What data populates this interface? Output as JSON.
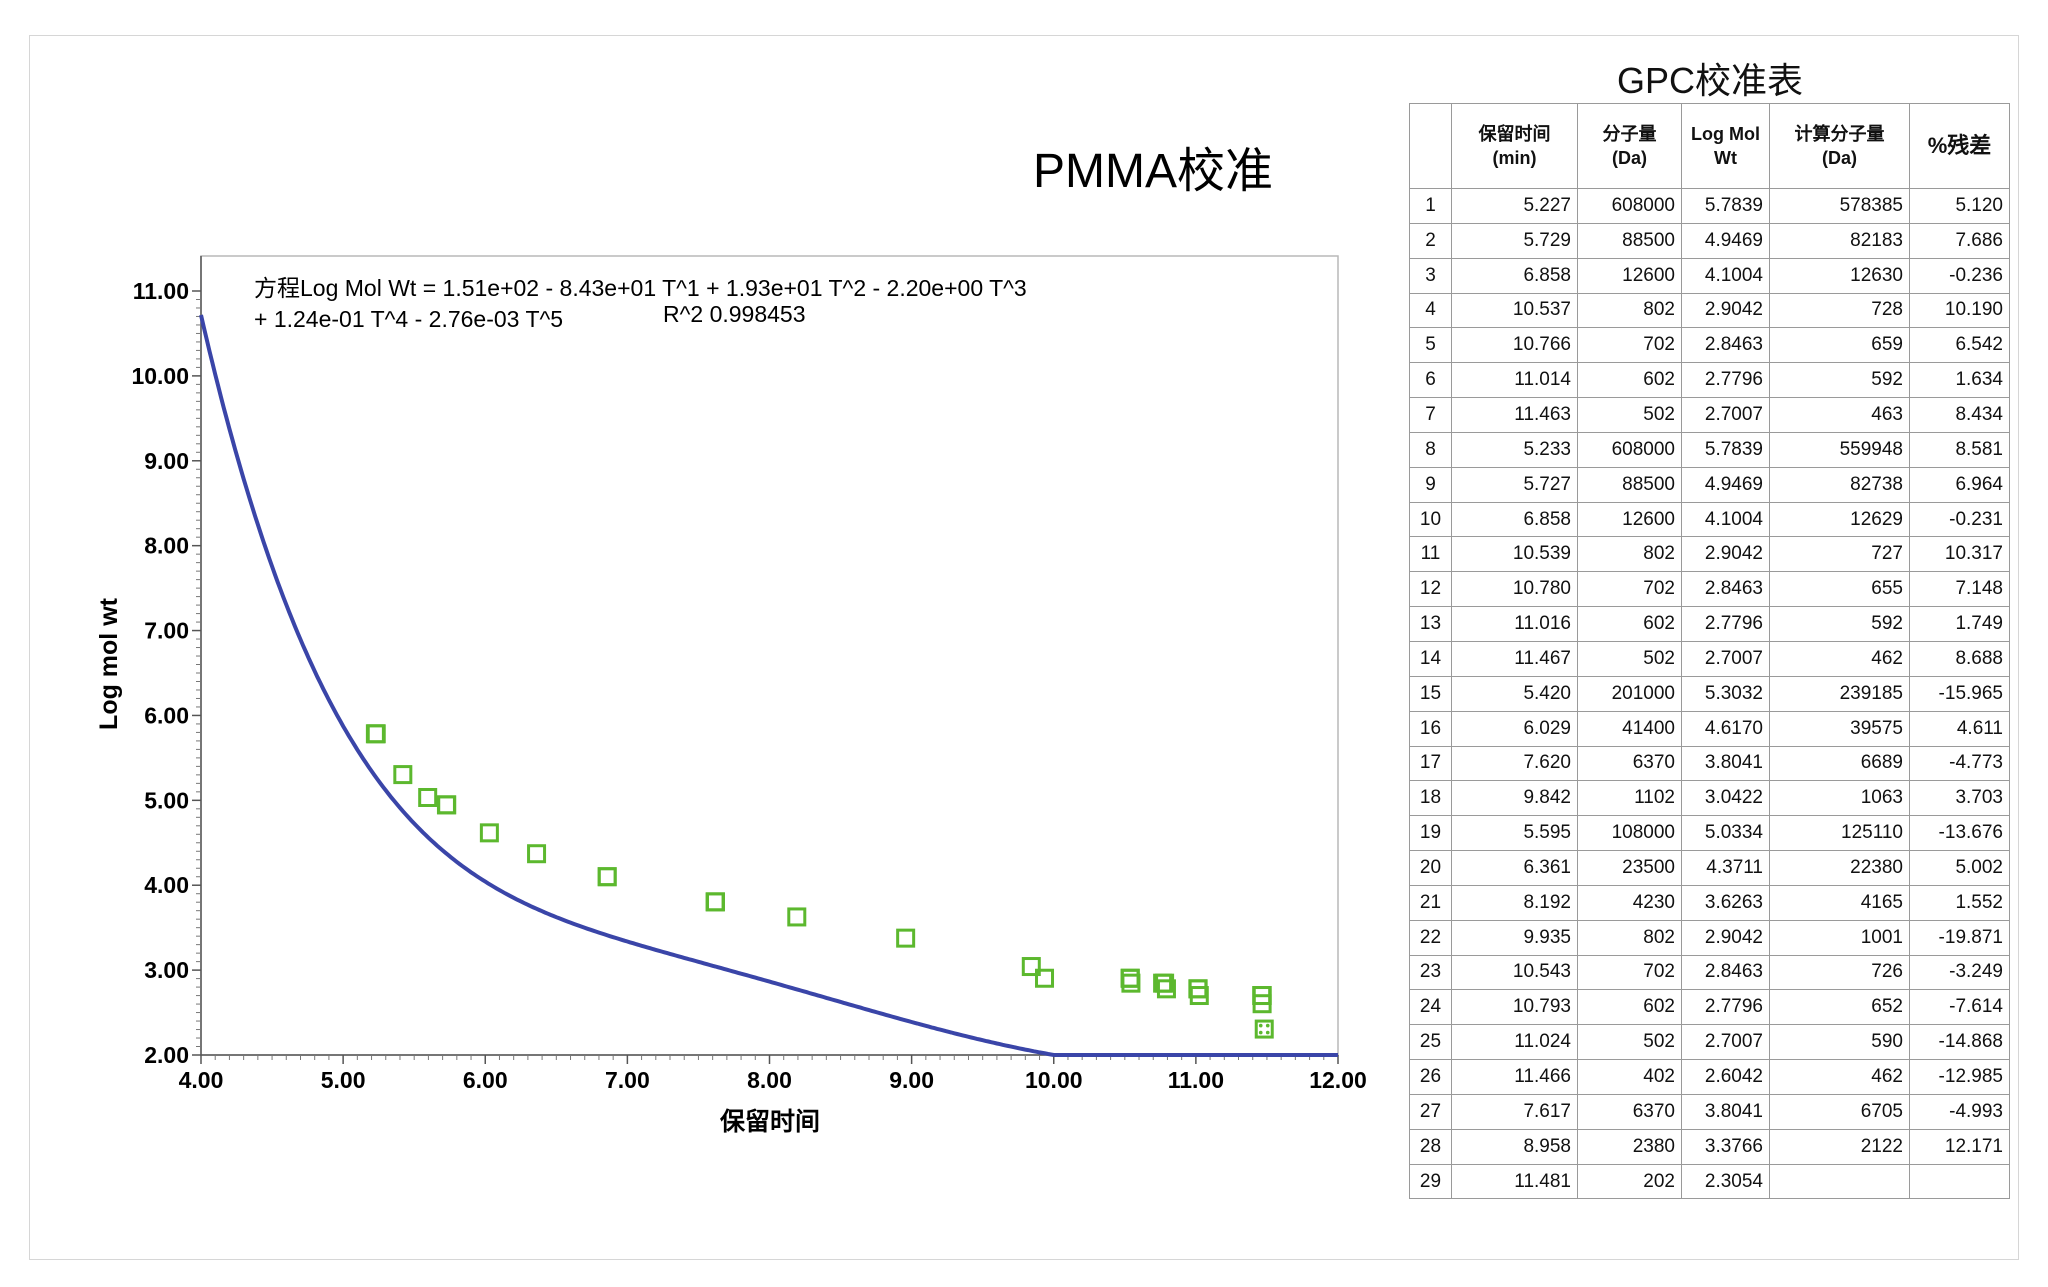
{
  "chart_data": {
    "type": "scatter",
    "title": "PMMA校准",
    "equation_line1": "方程Log Mol Wt = 1.51e+02 - 8.43e+01 T^1 + 1.93e+01 T^2 - 2.20e+00 T^3",
    "equation_line2": "+ 1.24e-01 T^4 - 2.76e-03 T^5",
    "r_squared_text": "R^2 0.998453",
    "xlabel": "保留时间",
    "ylabel": "Log mol wt",
    "xlim": [
      4.0,
      12.0
    ],
    "ylim": [
      2.0,
      11.0
    ],
    "x_ticks": [
      "4.00",
      "5.00",
      "6.00",
      "7.00",
      "8.00",
      "9.00",
      "10.00",
      "11.00",
      "12.00"
    ],
    "y_ticks": [
      "2.00",
      "3.00",
      "4.00",
      "5.00",
      "6.00",
      "7.00",
      "8.00",
      "9.00",
      "10.00",
      "11.00"
    ],
    "fit_coefficients": [
      151.0,
      -84.3,
      19.3,
      -2.2,
      0.124,
      -0.00276
    ],
    "fit_color": "#3a45a8",
    "marker_color": "#5cb82e",
    "points": [
      {
        "x": 5.227,
        "y": 5.7839
      },
      {
        "x": 5.729,
        "y": 4.9469
      },
      {
        "x": 6.858,
        "y": 4.1004
      },
      {
        "x": 10.537,
        "y": 2.9042
      },
      {
        "x": 10.766,
        "y": 2.8463
      },
      {
        "x": 11.014,
        "y": 2.7796
      },
      {
        "x": 11.463,
        "y": 2.7007
      },
      {
        "x": 5.233,
        "y": 5.7839
      },
      {
        "x": 5.727,
        "y": 4.9469
      },
      {
        "x": 6.858,
        "y": 4.1004
      },
      {
        "x": 10.539,
        "y": 2.9042
      },
      {
        "x": 10.78,
        "y": 2.8463
      },
      {
        "x": 11.016,
        "y": 2.7796
      },
      {
        "x": 11.467,
        "y": 2.7007
      },
      {
        "x": 5.42,
        "y": 5.3032
      },
      {
        "x": 6.029,
        "y": 4.617
      },
      {
        "x": 7.62,
        "y": 3.8041
      },
      {
        "x": 9.842,
        "y": 3.0422
      },
      {
        "x": 5.595,
        "y": 5.0334
      },
      {
        "x": 6.361,
        "y": 4.3711
      },
      {
        "x": 8.192,
        "y": 3.6263
      },
      {
        "x": 9.935,
        "y": 2.9042
      },
      {
        "x": 10.543,
        "y": 2.8463
      },
      {
        "x": 10.793,
        "y": 2.7796
      },
      {
        "x": 11.024,
        "y": 2.7007
      },
      {
        "x": 11.466,
        "y": 2.6042
      },
      {
        "x": 7.617,
        "y": 3.8041
      },
      {
        "x": 8.958,
        "y": 3.3766
      },
      {
        "x": 11.481,
        "y": 2.3054,
        "excluded": true
      }
    ]
  },
  "table": {
    "title": "GPC校准表",
    "headers": [
      {
        "line1": "",
        "line2": ""
      },
      {
        "line1": "保留时间",
        "line2": "(min)"
      },
      {
        "line1": "分子量",
        "line2": "(Da)"
      },
      {
        "line1": "Log Mol",
        "line2": "Wt"
      },
      {
        "line1": "计算分子量",
        "line2": "(Da)"
      },
      {
        "line1": "%残差",
        "line2": ""
      }
    ],
    "rows": [
      [
        "1",
        "5.227",
        "608000",
        "5.7839",
        "578385",
        "5.120"
      ],
      [
        "2",
        "5.729",
        "88500",
        "4.9469",
        "82183",
        "7.686"
      ],
      [
        "3",
        "6.858",
        "12600",
        "4.1004",
        "12630",
        "-0.236"
      ],
      [
        "4",
        "10.537",
        "802",
        "2.9042",
        "728",
        "10.190"
      ],
      [
        "5",
        "10.766",
        "702",
        "2.8463",
        "659",
        "6.542"
      ],
      [
        "6",
        "11.014",
        "602",
        "2.7796",
        "592",
        "1.634"
      ],
      [
        "7",
        "11.463",
        "502",
        "2.7007",
        "463",
        "8.434"
      ],
      [
        "8",
        "5.233",
        "608000",
        "5.7839",
        "559948",
        "8.581"
      ],
      [
        "9",
        "5.727",
        "88500",
        "4.9469",
        "82738",
        "6.964"
      ],
      [
        "10",
        "6.858",
        "12600",
        "4.1004",
        "12629",
        "-0.231"
      ],
      [
        "11",
        "10.539",
        "802",
        "2.9042",
        "727",
        "10.317"
      ],
      [
        "12",
        "10.780",
        "702",
        "2.8463",
        "655",
        "7.148"
      ],
      [
        "13",
        "11.016",
        "602",
        "2.7796",
        "592",
        "1.749"
      ],
      [
        "14",
        "11.467",
        "502",
        "2.7007",
        "462",
        "8.688"
      ],
      [
        "15",
        "5.420",
        "201000",
        "5.3032",
        "239185",
        "-15.965"
      ],
      [
        "16",
        "6.029",
        "41400",
        "4.6170",
        "39575",
        "4.611"
      ],
      [
        "17",
        "7.620",
        "6370",
        "3.8041",
        "6689",
        "-4.773"
      ],
      [
        "18",
        "9.842",
        "1102",
        "3.0422",
        "1063",
        "3.703"
      ],
      [
        "19",
        "5.595",
        "108000",
        "5.0334",
        "125110",
        "-13.676"
      ],
      [
        "20",
        "6.361",
        "23500",
        "4.3711",
        "22380",
        "5.002"
      ],
      [
        "21",
        "8.192",
        "4230",
        "3.6263",
        "4165",
        "1.552"
      ],
      [
        "22",
        "9.935",
        "802",
        "2.9042",
        "1001",
        "-19.871"
      ],
      [
        "23",
        "10.543",
        "702",
        "2.8463",
        "726",
        "-3.249"
      ],
      [
        "24",
        "10.793",
        "602",
        "2.7796",
        "652",
        "-7.614"
      ],
      [
        "25",
        "11.024",
        "502",
        "2.7007",
        "590",
        "-14.868"
      ],
      [
        "26",
        "11.466",
        "402",
        "2.6042",
        "462",
        "-12.985"
      ],
      [
        "27",
        "7.617",
        "6370",
        "3.8041",
        "6705",
        "-4.993"
      ],
      [
        "28",
        "8.958",
        "2380",
        "3.3766",
        "2122",
        "12.171"
      ],
      [
        "29",
        "11.481",
        "202",
        "2.3054",
        "",
        ""
      ]
    ]
  }
}
